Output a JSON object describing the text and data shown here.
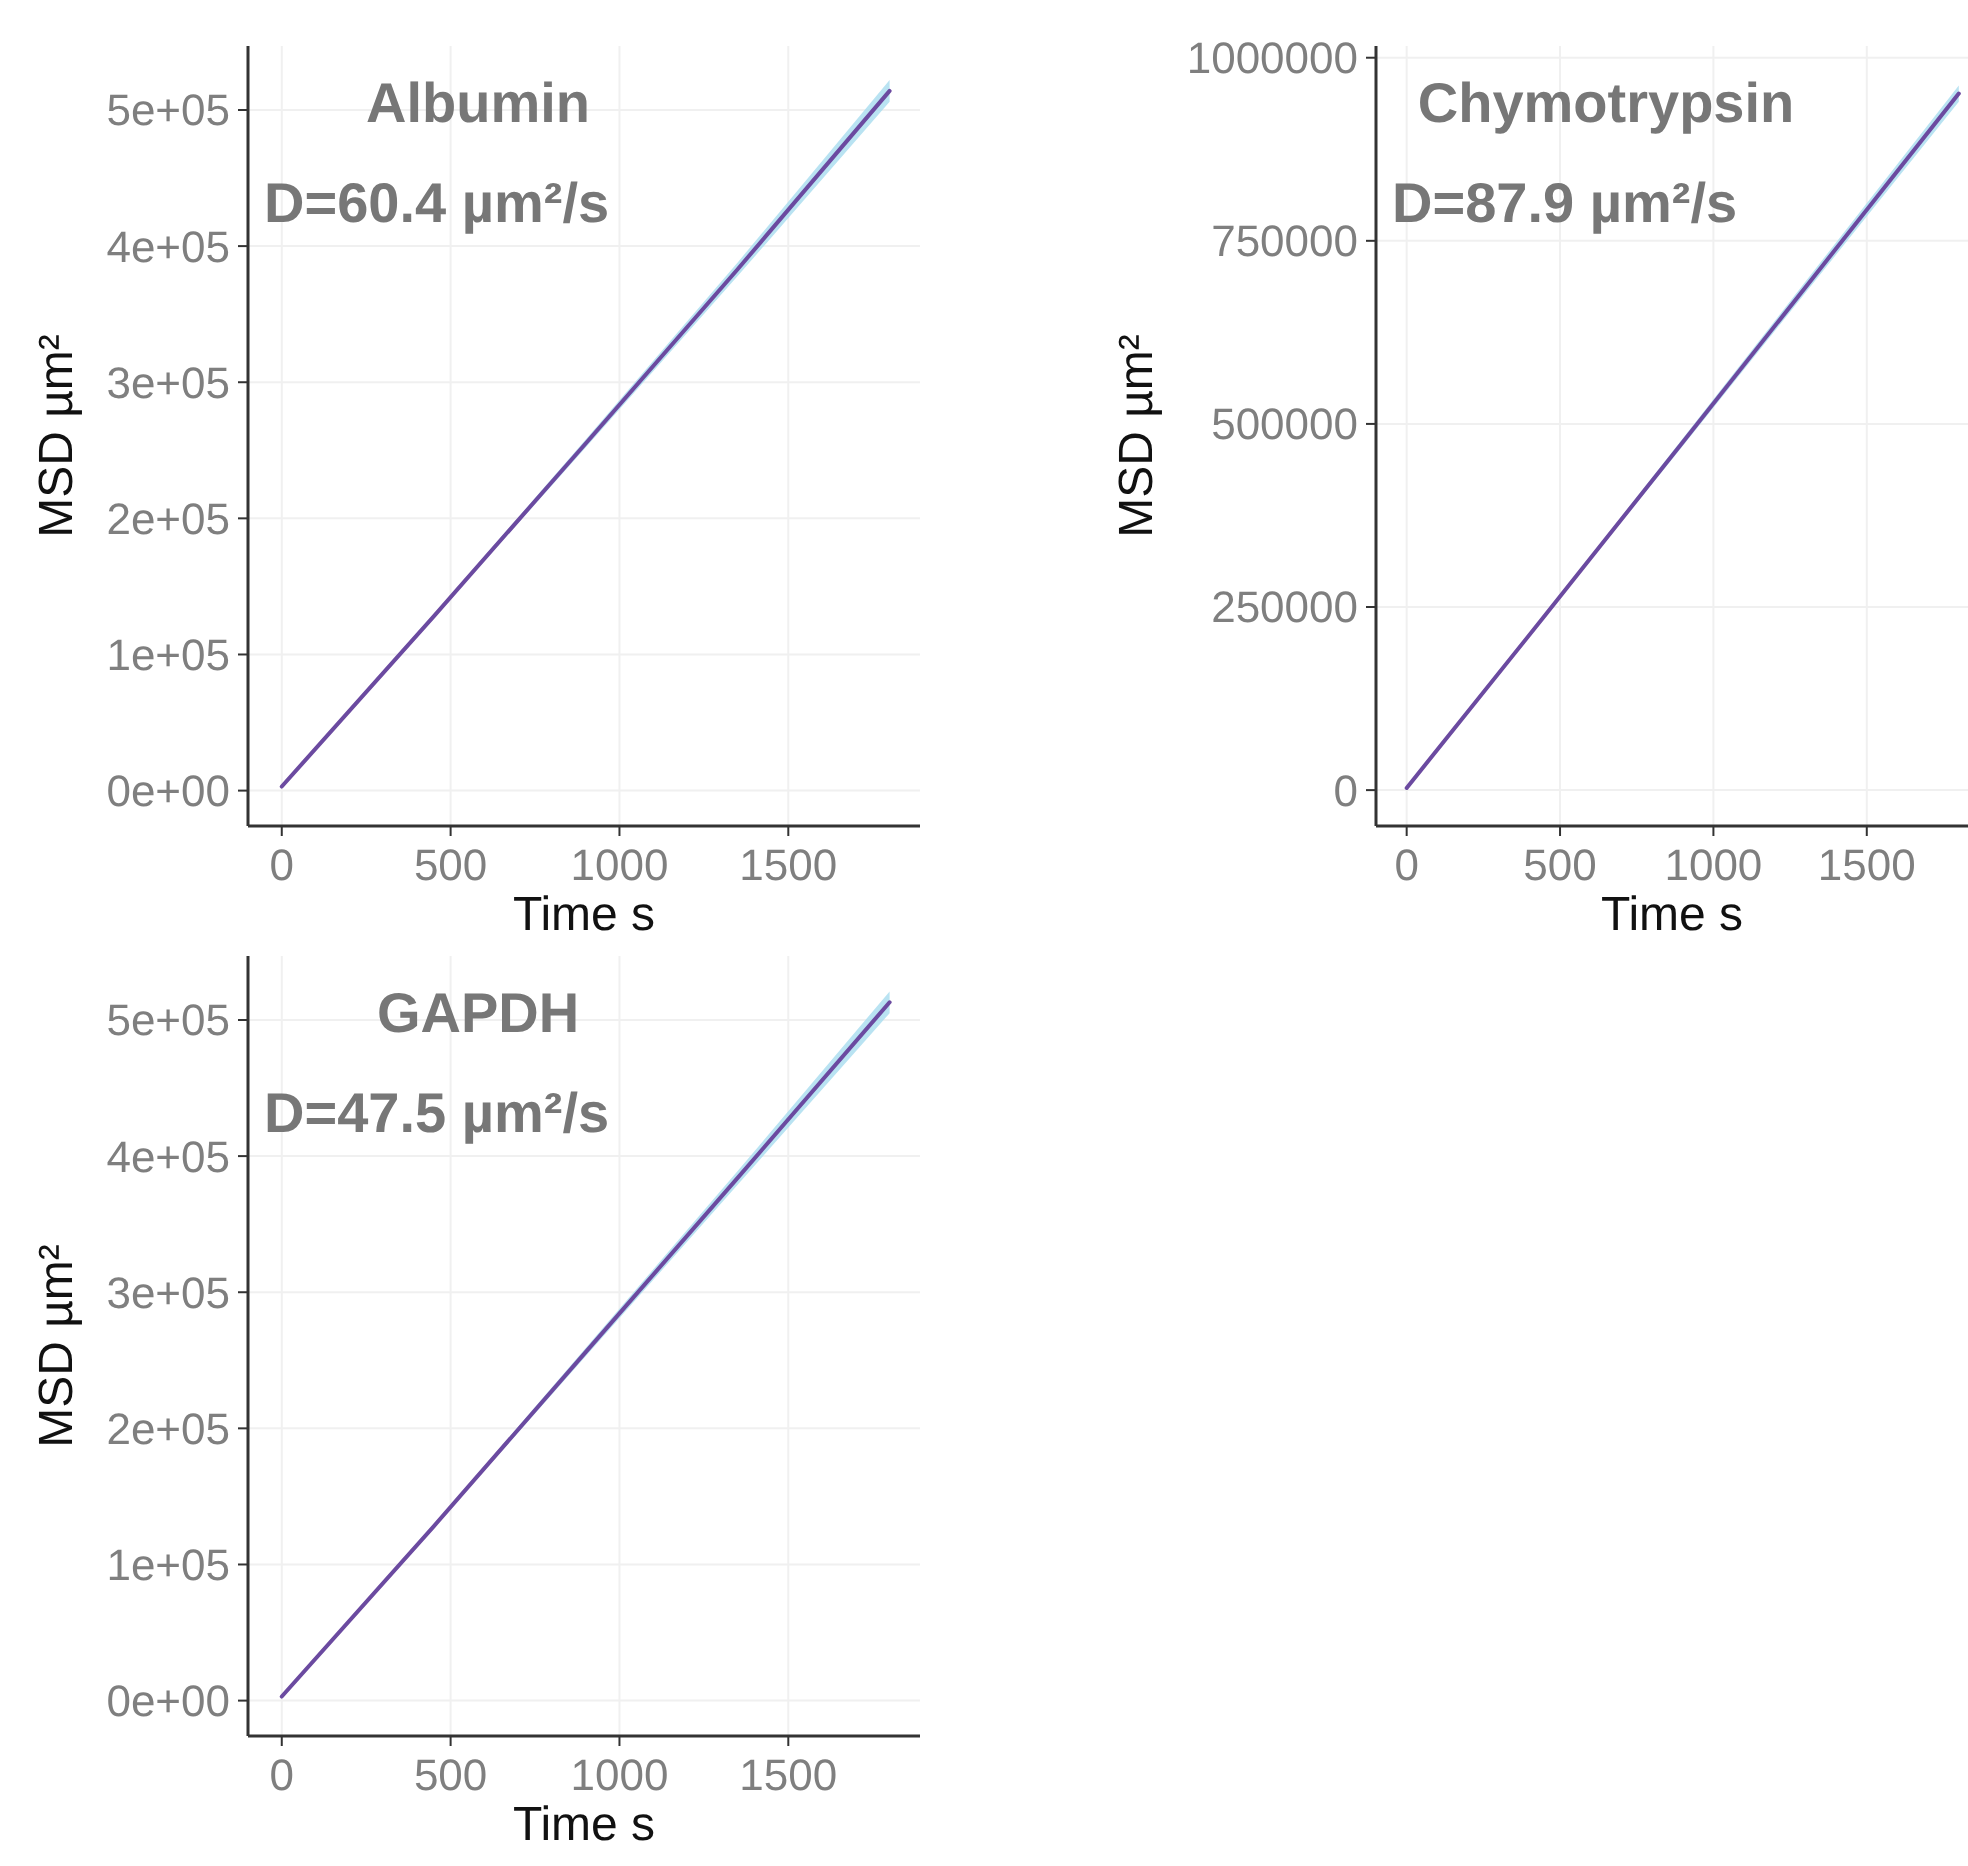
{
  "chart_data": [
    {
      "type": "line",
      "title": "Albumin",
      "annotations": [
        "D=60.4 µm²/s"
      ],
      "xlabel": "Time  s",
      "ylabel": "MSD µm²",
      "xlim": [
        -100,
        1890
      ],
      "xticks": [
        0,
        500,
        1000,
        1500
      ],
      "ylim": [
        -26000,
        547000
      ],
      "yticks": [
        {
          "value": 0,
          "label": "0e+00"
        },
        {
          "value": 100000,
          "label": "1e+05"
        },
        {
          "value": 200000,
          "label": "2e+05"
        },
        {
          "value": 300000,
          "label": "3e+05"
        },
        {
          "value": 400000,
          "label": "4e+05"
        },
        {
          "value": 500000,
          "label": "5e+05"
        }
      ],
      "grid": true,
      "series": [
        {
          "color": "#6b4aa0",
          "x": [
            0,
            450,
            900,
            1350,
            1800
          ],
          "values": [
            3000,
            128000,
            255000,
            383000,
            514000
          ],
          "lower": [
            3000,
            127000,
            252000,
            378000,
            506000
          ],
          "upper": [
            3000,
            129000,
            258000,
            388000,
            522000
          ]
        }
      ]
    },
    {
      "type": "line",
      "title": "Chymotrypsin",
      "annotations": [
        "D=87.9 µm²/s"
      ],
      "xlabel": "Time s",
      "ylabel": "MSD µm²",
      "xlim": [
        -100,
        1830
      ],
      "xticks": [
        0,
        500,
        1000,
        1500
      ],
      "ylim": [
        -49000,
        1016000
      ],
      "yticks": [
        0,
        250000,
        500000,
        750000,
        1000000
      ],
      "grid": true,
      "series": [
        {
          "color": "#6b4aa0",
          "x": [
            0,
            450,
            900,
            1350,
            1800
          ],
          "values": [
            3000,
            238000,
            475000,
            713000,
            951000
          ],
          "lower": [
            3000,
            236000,
            470000,
            705000,
            940000
          ],
          "upper": [
            3000,
            240000,
            480000,
            721000,
            962000
          ]
        }
      ]
    },
    {
      "type": "line",
      "title": "GAPDH",
      "annotations": [
        "D=47.5 µm²/s"
      ],
      "xlabel": "Time  s",
      "ylabel": "MSD µm²",
      "xlim": [
        -100,
        1890
      ],
      "xticks": [
        0,
        500,
        1000,
        1500
      ],
      "ylim": [
        -26000,
        547000
      ],
      "yticks": [
        {
          "value": 0,
          "label": "0e+00"
        },
        {
          "value": 100000,
          "label": "1e+05"
        },
        {
          "value": 200000,
          "label": "2e+05"
        },
        {
          "value": 300000,
          "label": "3e+05"
        },
        {
          "value": 400000,
          "label": "4e+05"
        },
        {
          "value": 500000,
          "label": "5e+05"
        }
      ],
      "grid": true,
      "series": [
        {
          "color": "#6b4aa0",
          "x": [
            0,
            450,
            900,
            1350,
            1800
          ],
          "values": [
            3000,
            128000,
            256000,
            384000,
            513000
          ],
          "lower": [
            3000,
            127000,
            253000,
            379000,
            505000
          ],
          "upper": [
            3000,
            129000,
            259000,
            389000,
            521000
          ]
        }
      ]
    }
  ]
}
